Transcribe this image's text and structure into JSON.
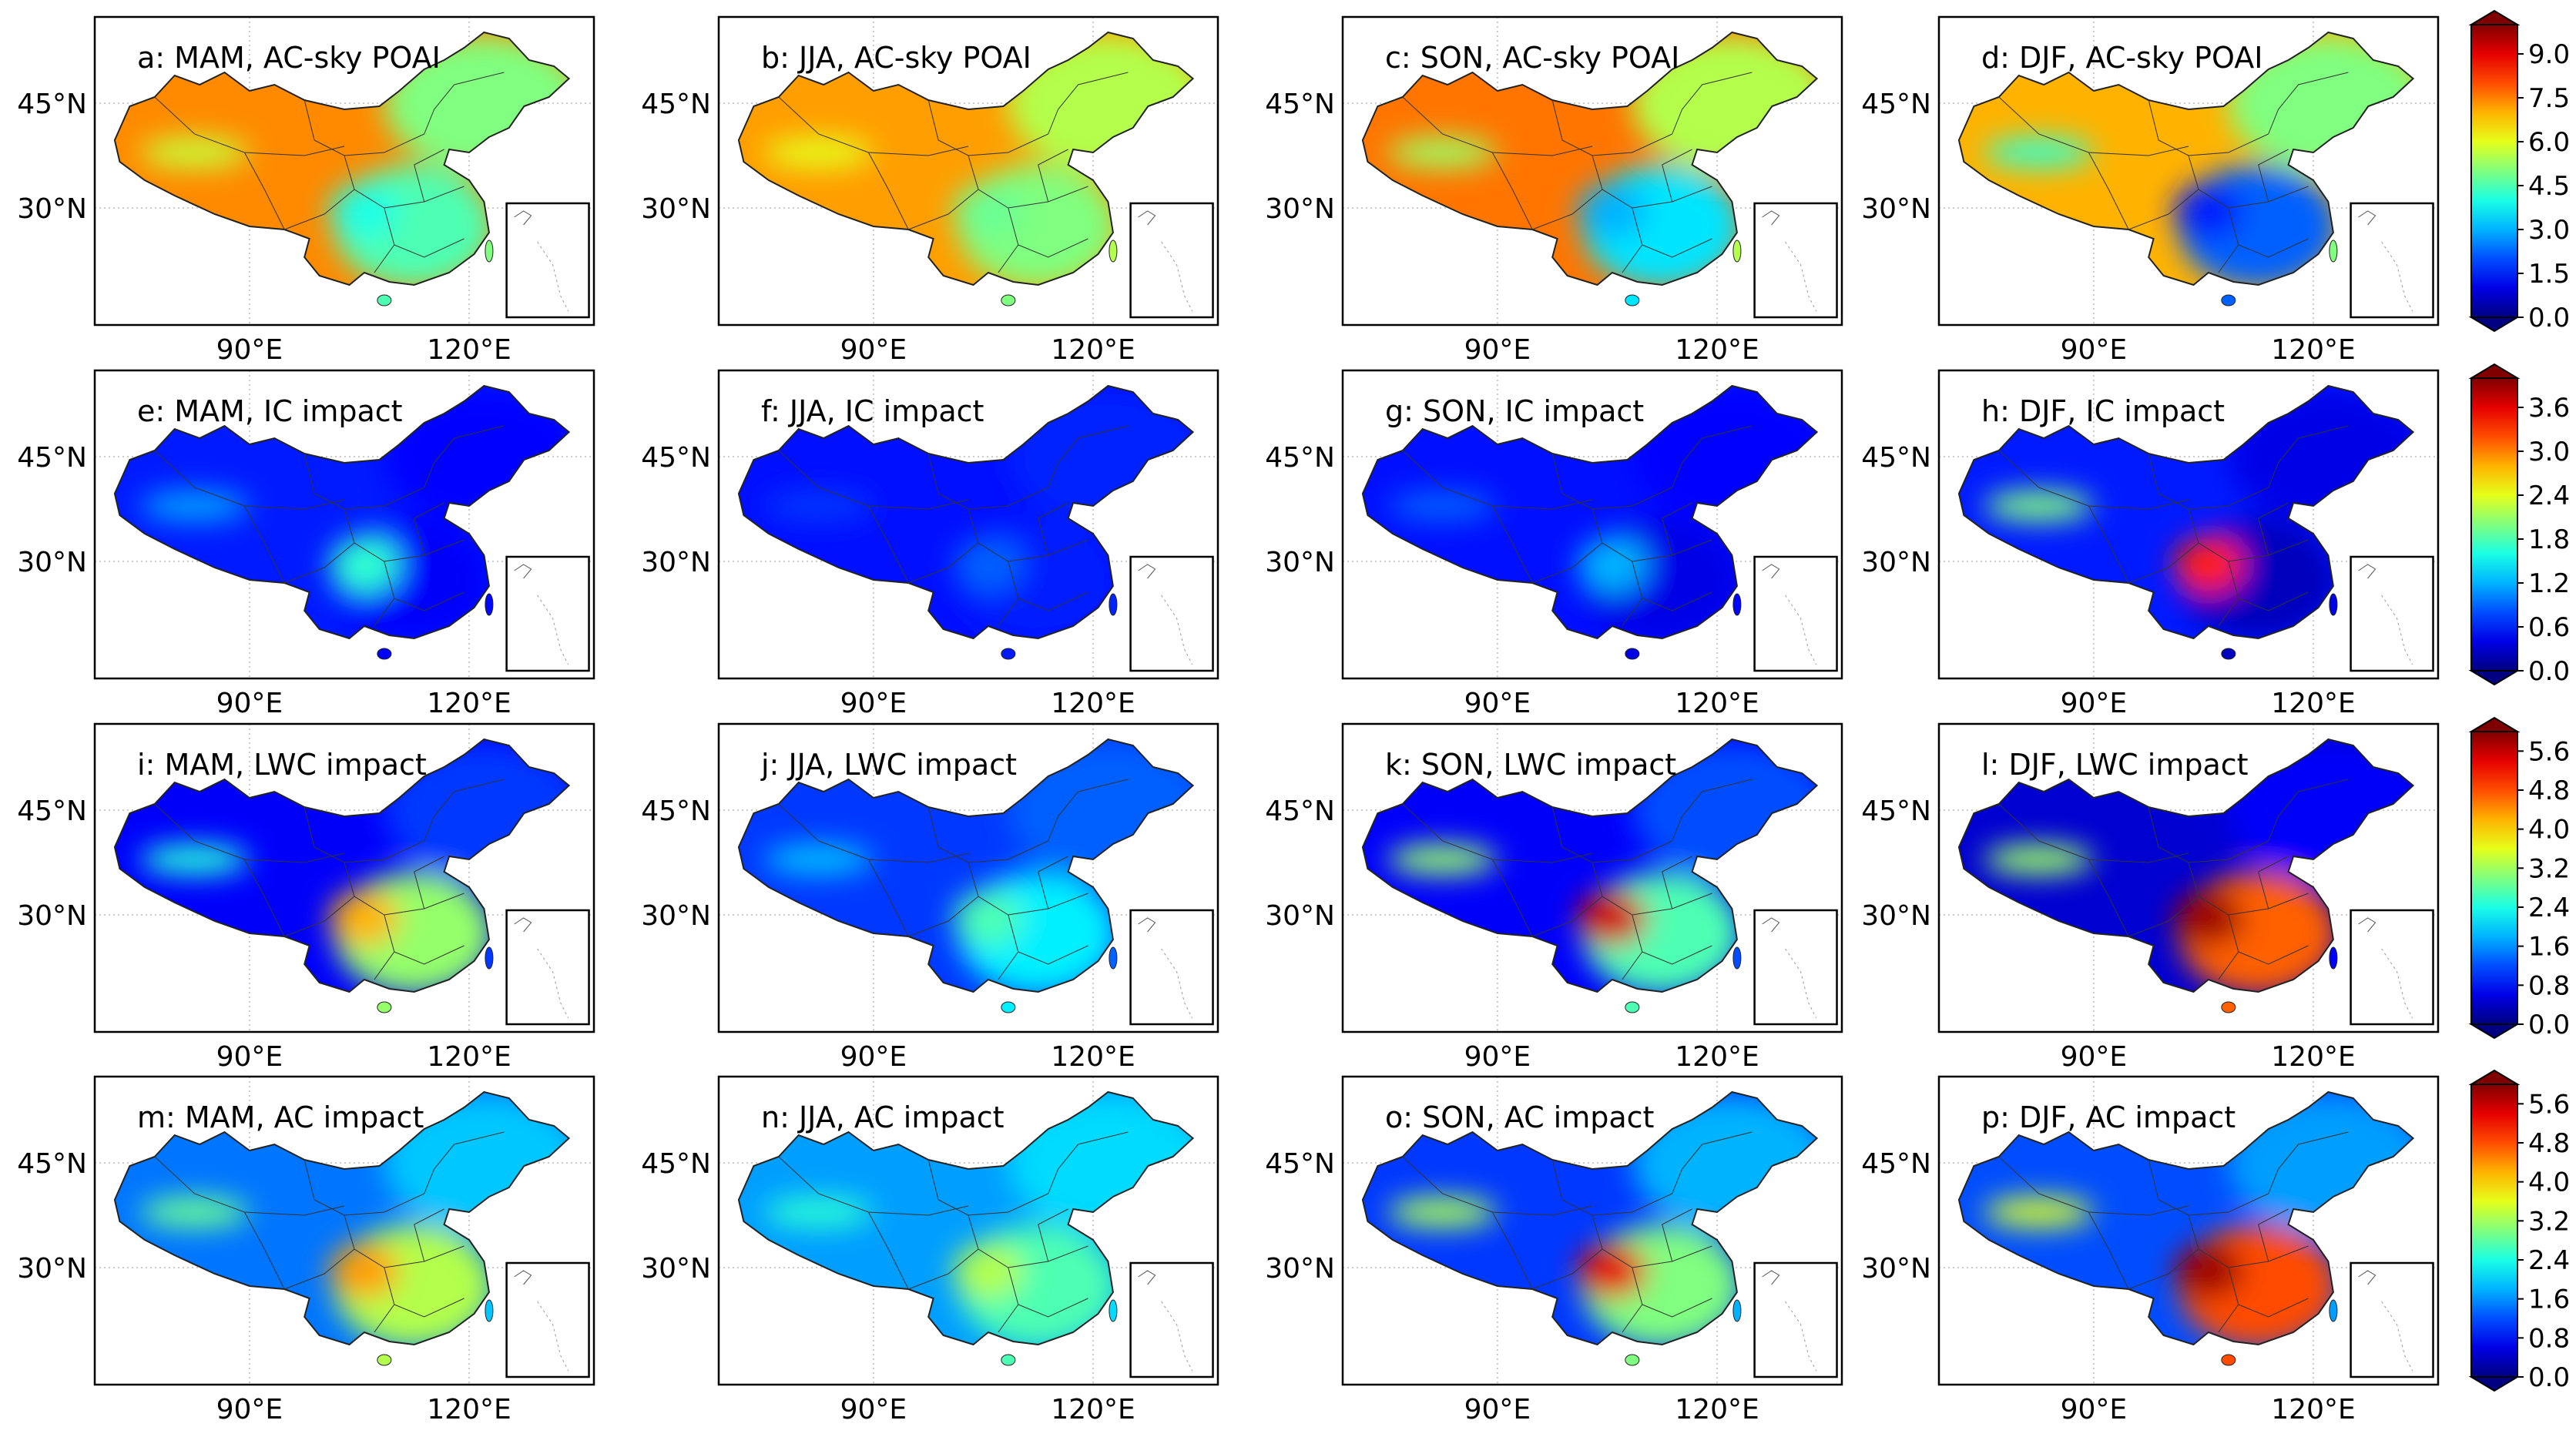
{
  "figure": {
    "latitude_ticks": [
      "45°N",
      "30°N"
    ],
    "longitude_ticks": [
      "90°E",
      "120°E"
    ],
    "rows": [
      {
        "row_id": "ac-sky-poai",
        "colorbar_ticks": [
          "9.0",
          "7.5",
          "6.0",
          "4.5",
          "3.0",
          "1.5",
          "0.0"
        ],
        "colorbar_max": 10,
        "panels": [
          {
            "label": "a: MAM, AC-sky POAI",
            "season": "MAM",
            "bg_level": 0.74,
            "east_level": 0.5,
            "south_level": 0.45,
            "hotspot_level": 0.4
          },
          {
            "label": "b: JJA, AC-sky POAI",
            "season": "JJA",
            "bg_level": 0.72,
            "east_level": 0.55,
            "south_level": 0.5,
            "hotspot_level": 0.48
          },
          {
            "label": "c: SON, AC-sky POAI",
            "season": "SON",
            "bg_level": 0.76,
            "east_level": 0.55,
            "south_level": 0.35,
            "hotspot_level": 0.3
          },
          {
            "label": "d: DJF, AC-sky POAI",
            "season": "DJF",
            "bg_level": 0.7,
            "east_level": 0.5,
            "south_level": 0.22,
            "hotspot_level": 0.15
          }
        ]
      },
      {
        "row_id": "ic-impact",
        "colorbar_ticks": [
          "3.6",
          "3.0",
          "2.4",
          "1.8",
          "1.2",
          "0.6",
          "0.0"
        ],
        "colorbar_max": 4,
        "panels": [
          {
            "label": "e: MAM, IC impact",
            "season": "MAM",
            "bg_level": 0.15,
            "east_level": 0.13,
            "south_level": 0.12,
            "hotspot_level": 0.42
          },
          {
            "label": "f: JJA, IC impact",
            "season": "JJA",
            "bg_level": 0.14,
            "east_level": 0.16,
            "south_level": 0.15,
            "hotspot_level": 0.22
          },
          {
            "label": "g: SON, IC impact",
            "season": "SON",
            "bg_level": 0.14,
            "east_level": 0.13,
            "south_level": 0.1,
            "hotspot_level": 0.3
          },
          {
            "label": "h: DJF, IC impact",
            "season": "DJF",
            "bg_level": 0.15,
            "east_level": 0.1,
            "south_level": 0.06,
            "hotspot_level": 0.85
          }
        ]
      },
      {
        "row_id": "lwc-impact",
        "colorbar_ticks": [
          "5.6",
          "4.8",
          "4.0",
          "3.2",
          "2.4",
          "1.6",
          "0.8",
          "0.0"
        ],
        "colorbar_max": 6,
        "panels": [
          {
            "label": "i: MAM, LWC impact",
            "season": "MAM",
            "bg_level": 0.12,
            "east_level": 0.18,
            "south_level": 0.52,
            "hotspot_level": 0.7
          },
          {
            "label": "j: JJA, LWC impact",
            "season": "JJA",
            "bg_level": 0.18,
            "east_level": 0.22,
            "south_level": 0.36,
            "hotspot_level": 0.45
          },
          {
            "label": "k: SON, LWC impact",
            "season": "SON",
            "bg_level": 0.12,
            "east_level": 0.2,
            "south_level": 0.45,
            "hotspot_level": 0.92
          },
          {
            "label": "l: DJF, LWC impact",
            "season": "DJF",
            "bg_level": 0.08,
            "east_level": 0.12,
            "south_level": 0.78,
            "hotspot_level": 0.97
          }
        ]
      },
      {
        "row_id": "ac-impact",
        "colorbar_ticks": [
          "5.6",
          "4.8",
          "4.0",
          "3.2",
          "2.4",
          "1.6",
          "0.8",
          "0.0"
        ],
        "colorbar_max": 6,
        "panels": [
          {
            "label": "m: MAM, AC impact",
            "season": "MAM",
            "bg_level": 0.24,
            "east_level": 0.32,
            "south_level": 0.55,
            "hotspot_level": 0.72
          },
          {
            "label": "n: JJA, AC impact",
            "season": "JJA",
            "bg_level": 0.28,
            "east_level": 0.34,
            "south_level": 0.45,
            "hotspot_level": 0.55
          },
          {
            "label": "o: SON, AC impact",
            "season": "SON",
            "bg_level": 0.18,
            "east_level": 0.3,
            "south_level": 0.5,
            "hotspot_level": 0.9
          },
          {
            "label": "p: DJF, AC impact",
            "season": "DJF",
            "bg_level": 0.2,
            "east_level": 0.28,
            "south_level": 0.8,
            "hotspot_level": 0.97
          }
        ]
      }
    ]
  }
}
